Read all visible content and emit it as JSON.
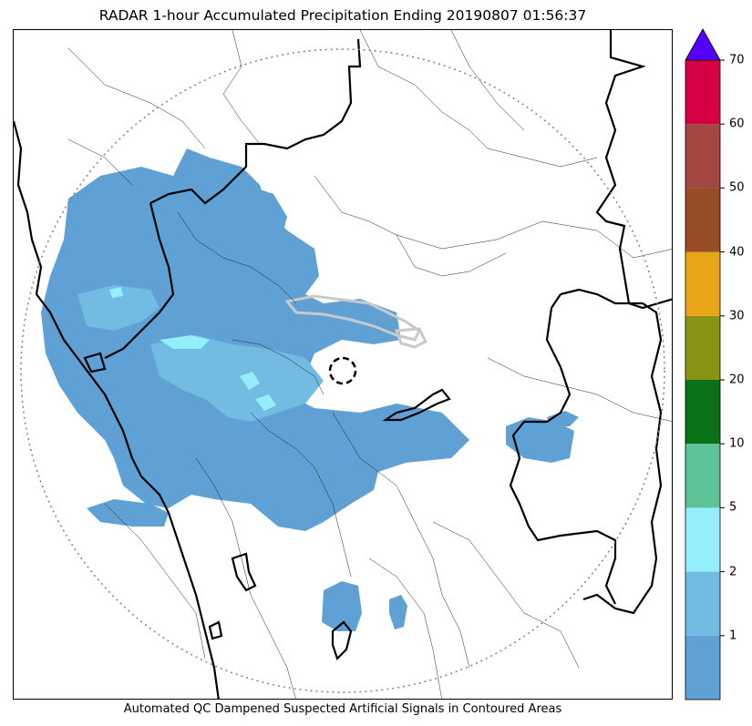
{
  "title": "RADAR 1-hour Accumulated Precipitation Ending 20190807 01:56:37",
  "footer": "Automated QC Dampened Suspected Artificial Signals in Contoured Areas",
  "colorbar": {
    "bins": [
      {
        "from": 0,
        "to": 1,
        "color": "#5fa1d4"
      },
      {
        "from": 1,
        "to": 2,
        "color": "#72bbe3"
      },
      {
        "from": 2,
        "to": 5,
        "color": "#94eefc"
      },
      {
        "from": 5,
        "to": 10,
        "color": "#5dc398"
      },
      {
        "from": 10,
        "to": 20,
        "color": "#0a7117"
      },
      {
        "from": 20,
        "to": 30,
        "color": "#8a9414"
      },
      {
        "from": 30,
        "to": 40,
        "color": "#e8a617"
      },
      {
        "from": 40,
        "to": 50,
        "color": "#984c26"
      },
      {
        "from": 50,
        "to": 60,
        "color": "#a54741"
      },
      {
        "from": 60,
        "to": 70,
        "color": "#d40043"
      }
    ],
    "tick_labels": [
      "1",
      "2",
      "5",
      "10",
      "20",
      "30",
      "40",
      "50",
      "60",
      "70"
    ],
    "over_color": "#5400ff"
  },
  "map": {
    "range_ring_color": "#808080",
    "boundary_color": "#000000",
    "precip_light_color": "#5fa1d4",
    "precip_mid_color": "#72bbe3",
    "precip_heavy_color": "#94eefc",
    "qc_contour_color": "#c9c9c9"
  }
}
